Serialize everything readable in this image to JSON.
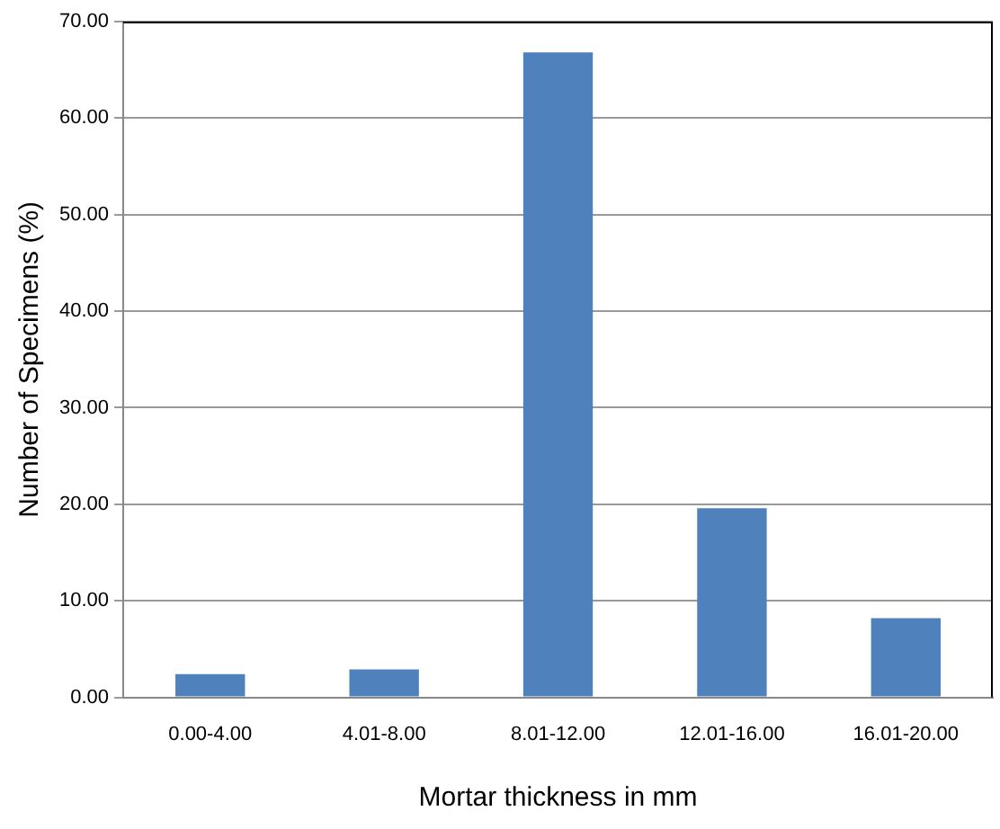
{
  "chart_data": {
    "type": "bar",
    "xlabel": "Mortar thickness in mm",
    "ylabel": "Number of Specimens (%)",
    "categories": [
      "0.00-4.00",
      "4.01-8.00",
      "8.01-12.00",
      "12.01-16.00",
      "16.01-20.00"
    ],
    "values": [
      2.4,
      2.9,
      66.8,
      19.6,
      8.2
    ],
    "color": "#4f81bd",
    "ylim": [
      0,
      70
    ],
    "yticks": [
      {
        "value": 0,
        "label": "0.00"
      },
      {
        "value": 10,
        "label": "10.00"
      },
      {
        "value": 20,
        "label": "20.00"
      },
      {
        "value": 30,
        "label": "30.00"
      },
      {
        "value": 40,
        "label": "40.00"
      },
      {
        "value": 50,
        "label": "50.00"
      },
      {
        "value": 60,
        "label": "60.00"
      },
      {
        "value": 70,
        "label": "70.00"
      }
    ],
    "grid": "y",
    "legend": false
  }
}
